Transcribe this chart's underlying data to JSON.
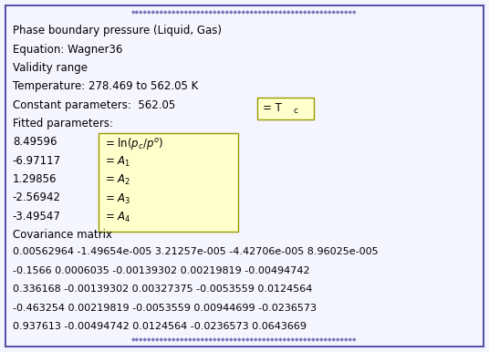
{
  "bg_color": "#dcdce8",
  "border_color": "#5555aa",
  "panel_bg": "#f5f5ff",
  "yellow_box_color": "#ffffcc",
  "yellow_box_border": "#999900",
  "title_line1": "Phase boundary pressure (Liquid, Gas)",
  "title_line2": "Equation: Wagner36",
  "validity_label": "Validity range",
  "temp_range": "Temperature: 278.469 to 562.05 K",
  "constant_label": "Constant parameters:  562.05",
  "fitted_label": "Fitted parameters:",
  "fitted_values": [
    "8.49596",
    "-6.97117",
    "1.29856",
    "-2.56942",
    "-3.49547"
  ],
  "covariance_label": "Covariance matrix",
  "covariance_rows": [
    "0.00562964 -1.49654e-005 3.21257e-005 -4.42706e-005 8.96025e-005",
    "-0.1566 0.0006035 -0.00139302 0.00219819 -0.00494742",
    "0.336168 -0.00139302 0.00327375 -0.0053559 0.0124564",
    "-0.463254 0.00219819 -0.0053559 0.00944699 -0.0236573",
    "0.937613 -0.00494742 0.0124564 -0.0236573 0.0643669"
  ],
  "text_color": "#000000",
  "font_size": 8.5,
  "small_font_size": 8.0,
  "deco_color": "#7777bb"
}
